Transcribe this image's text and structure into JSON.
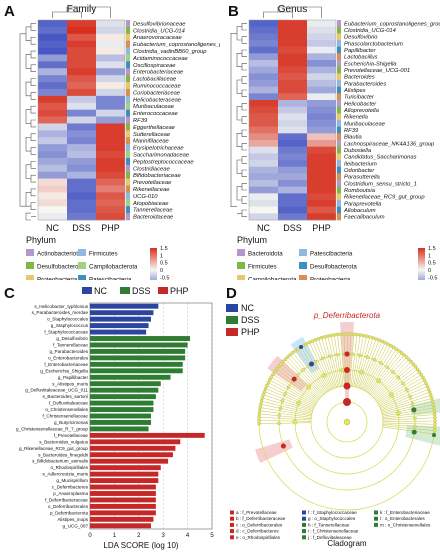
{
  "panels": {
    "A": {
      "letter": "A",
      "title": "Family",
      "columns": [
        "NC",
        "DSS",
        "PHP"
      ],
      "rows": [
        "Desulfovibrionaceae",
        "Clostridia_UCG-014",
        "Anaerovoracaceae",
        "Eubacterium_coprostanoligenes_group",
        "Clostridia_vadinBB60_group",
        "Acidaminococcaceae",
        "Oscillospiraceae",
        "Enterobacteriaceae",
        "Lactobacillaceae",
        "Ruminococcaceae",
        "Coriobacteriaceae",
        "Helicobacteraceae",
        "Muribaculaceae",
        "Enterococcaceae",
        "RF39",
        "Eggerthellaceae",
        "Sutterellaceae",
        "Marinifilaceae",
        "Erysipelotrichaceae",
        "Saccharimonadaceae",
        "Peptostreptococcaceae",
        "Clostridiaceae",
        "Bifidobacteriaceae",
        "Prevotellaceae",
        "Rikenellaceae",
        "UCG-010",
        "Atopobiaceae",
        "Tannerellaceae",
        "Bacteroidaceae"
      ],
      "values": [
        [
          -1.3,
          1.4,
          -0.2
        ],
        [
          -1.2,
          1.5,
          -0.3
        ],
        [
          -1.4,
          1.2,
          0.1
        ],
        [
          -1.3,
          1.4,
          -0.1
        ],
        [
          -1.4,
          1.3,
          0.1
        ],
        [
          -0.8,
          1.3,
          -0.5
        ],
        [
          -1.2,
          1.3,
          -0.2
        ],
        [
          -0.6,
          1.4,
          -0.8
        ],
        [
          -1.0,
          1.2,
          -0.3
        ],
        [
          -1.2,
          1.1,
          0.1
        ],
        [
          -1.0,
          1.3,
          -0.3
        ],
        [
          1.4,
          -0.4,
          -1.0
        ],
        [
          1.2,
          -0.2,
          -1.0
        ],
        [
          1.3,
          -1.0,
          -0.3
        ],
        [
          1.1,
          -0.3,
          -0.8
        ],
        [
          -0.3,
          -1.1,
          1.4
        ],
        [
          -0.6,
          -0.9,
          1.4
        ],
        [
          -0.4,
          -1.0,
          1.4
        ],
        [
          -0.8,
          -0.6,
          1.4
        ],
        [
          -0.9,
          -0.5,
          1.3
        ],
        [
          -0.7,
          -0.8,
          1.4
        ],
        [
          -0.5,
          -0.9,
          1.4
        ],
        [
          -0.8,
          -0.6,
          1.3
        ],
        [
          0.2,
          -1.2,
          1.1
        ],
        [
          0.3,
          -1.2,
          0.9
        ],
        [
          0.1,
          -1.3,
          1.2
        ],
        [
          0.2,
          -1.2,
          1.1
        ],
        [
          0.0,
          -1.2,
          1.2
        ],
        [
          -0.1,
          -1.1,
          1.3
        ]
      ],
      "phylum_label": "Phylum",
      "legend": [
        {
          "name": "Actinobacteriota",
          "color": "#b398c8"
        },
        {
          "name": "Desulfobacterota",
          "color": "#7fb848"
        },
        {
          "name": "Proteobacteria",
          "color": "#e8c86a"
        },
        {
          "name": "Bacteroidota",
          "color": "#d98e56"
        },
        {
          "name": "Firmicutes",
          "color": "#8fb9e3"
        },
        {
          "name": "Campilobacterota",
          "color": "#a5d07e"
        },
        {
          "name": "Patescibacteria",
          "color": "#3d8fc2"
        }
      ],
      "scale_ticks": [
        "1.5",
        "1",
        "0.5",
        "0",
        "-0.5",
        "-1",
        "-1.5"
      ]
    },
    "B": {
      "letter": "B",
      "title": "Genus",
      "columns": [
        "NC",
        "DSS",
        "PHP"
      ],
      "rows": [
        "Eubacterium_coprostanoligenes_group",
        "Clostridia_UCG-014",
        "Desulfovibrio",
        "Phascolarctobacterium",
        "Papillibacter",
        "Lactobacillus",
        "Escherichia-Shigella",
        "Prevotellaceae_UCG-001",
        "Bacteroides",
        "Parabacteroides",
        "Alistipes",
        "Turicibacter",
        "Helicobacter",
        "Alloprevotella",
        "Rikenella",
        "Muribaculaceae",
        "RF39",
        "Blautia",
        "Lachnospiraceae_NK4A136_group",
        "Dubosiella",
        "Candidatus_Saccharimonas",
        "Ileibacterium",
        "Odoribacter",
        "Parasutterella",
        "Clostridium_sensu_stricto_1",
        "Romboutsia",
        "Rikenellaceae_RC9_gut_group",
        "Paraprevotella",
        "Allobaculum",
        "Faecalibaculum"
      ],
      "values": [
        [
          -1.3,
          1.4,
          -0.1
        ],
        [
          -1.2,
          1.4,
          -0.2
        ],
        [
          -1.1,
          1.4,
          -0.3
        ],
        [
          -1.0,
          1.4,
          -0.4
        ],
        [
          -1.2,
          1.3,
          -0.1
        ],
        [
          -0.8,
          1.4,
          -0.6
        ],
        [
          -0.5,
          1.4,
          -0.9
        ],
        [
          -0.7,
          1.3,
          -0.6
        ],
        [
          -0.9,
          1.2,
          -0.3
        ],
        [
          -0.8,
          1.3,
          -0.5
        ],
        [
          -0.6,
          1.3,
          -0.7
        ],
        [
          -1.0,
          1.1,
          -0.1
        ],
        [
          1.4,
          -0.6,
          -0.8
        ],
        [
          1.3,
          -0.4,
          -0.9
        ],
        [
          1.2,
          -0.2,
          -1.0
        ],
        [
          1.2,
          -0.3,
          -0.9
        ],
        [
          1.0,
          -0.2,
          -0.8
        ],
        [
          0.8,
          -1.2,
          0.4
        ],
        [
          0.6,
          -1.3,
          0.7
        ],
        [
          -0.2,
          -1.1,
          1.3
        ],
        [
          -0.4,
          -1.0,
          1.4
        ],
        [
          -0.3,
          -1.1,
          1.4
        ],
        [
          -0.6,
          -0.8,
          1.4
        ],
        [
          -0.7,
          -0.7,
          1.4
        ],
        [
          -0.5,
          -0.9,
          1.4
        ],
        [
          -0.8,
          -0.6,
          1.4
        ],
        [
          -0.1,
          -1.2,
          1.3
        ],
        [
          -0.2,
          -1.2,
          1.4
        ],
        [
          0.0,
          -1.3,
          1.2
        ],
        [
          -0.3,
          -1.1,
          1.4
        ]
      ],
      "phylum_label": "Phylum",
      "legend": [
        {
          "name": "Bacteroidota",
          "color": "#b398c8"
        },
        {
          "name": "Firmicutes",
          "color": "#7fb848"
        },
        {
          "name": "Campilobacterota",
          "color": "#e8c86a"
        },
        {
          "name": "Patescibacteria",
          "color": "#8fb9e3"
        },
        {
          "name": "Desulfobacterota",
          "color": "#3d8fc2"
        },
        {
          "name": "Proteobacteria",
          "color": "#d98e56"
        }
      ],
      "scale_ticks": [
        "1.5",
        "1",
        "0.5",
        "0",
        "-0.5",
        "-1",
        "-1.5"
      ]
    },
    "C": {
      "letter": "C",
      "xlabel": "LDA SCORE (log 10)",
      "groups": [
        {
          "name": "NC",
          "color": "#2b46a0"
        },
        {
          "name": "DSS",
          "color": "#2e7d32"
        },
        {
          "name": "PHP",
          "color": "#c62828"
        }
      ]
    },
    "D": {
      "letter": "D",
      "xlabel": "Cladogram",
      "highlight_label": "p_Deferribacterota",
      "legend_groups": [
        {
          "name": "NC",
          "color": "#2b46a0"
        },
        {
          "name": "DSS",
          "color": "#2e7d32"
        },
        {
          "name": "PHP",
          "color": "#c62828"
        }
      ],
      "key": [
        {
          "code": "a",
          "text": "a : f_Prevotellaceae",
          "color": "#c62828"
        },
        {
          "code": "b",
          "text": "b : f_Deferribacteraceae",
          "color": "#c62828"
        },
        {
          "code": "c",
          "text": "c : o_Deferribacterales",
          "color": "#c62828"
        },
        {
          "code": "d",
          "text": "d : c_Deferribacteres",
          "color": "#c62828"
        },
        {
          "code": "e",
          "text": "e : o_Rhodospirillales",
          "color": "#c62828"
        },
        {
          "code": "f",
          "text": "f : f_Staphylococcaceae",
          "color": "#2b46a0"
        },
        {
          "code": "g",
          "text": "g : o_Staphylococcales",
          "color": "#2b46a0"
        },
        {
          "code": "h",
          "text": "h : f_Tannerellaceae",
          "color": "#2e7d32"
        },
        {
          "code": "i",
          "text": "i : f_Christensenellaceae",
          "color": "#2e7d32"
        },
        {
          "code": "j",
          "text": "j : f_Defluviitaleaceae",
          "color": "#2e7d32"
        },
        {
          "code": "k",
          "text": "k : f_Enterobacteriaceae",
          "color": "#2e7d32"
        },
        {
          "code": "l",
          "text": "l : o_Enterobacterales",
          "color": "#2e7d32"
        },
        {
          "code": "m",
          "text": "m : o_Christensenellales",
          "color": "#2e7d32"
        }
      ]
    }
  },
  "chart_data": [
    {
      "type": "bar",
      "orientation": "horizontal",
      "xlabel": "LDA SCORE (log 10)",
      "xlim": [
        0,
        5
      ],
      "xticks": [
        0,
        1,
        2,
        3,
        4,
        5
      ],
      "grid": "vertical dashed",
      "legend": "top",
      "categories": [
        "s_Helicobacter_typhlonius",
        "s_Parabacteroides_merdae",
        "o_Staphylococcales",
        "g_Staphylococcus",
        "f_Staphylococcaceae",
        "g_Desulfovibrio",
        "f_Tannerellaceae",
        "g_Parabacteroides",
        "o_Enterobacterales",
        "f_Enterobacteriaceae",
        "g_Escherichia_Shigella",
        "g_Papillibacter",
        "s_Alistipes_muris",
        "g_Defluviitaleaceae_UCG_011",
        "s_Bacteroides_sartorii",
        "f_Defluviitaleaceae",
        "o_Christensenellales",
        "f_Christensenellaceae",
        "g_Butyricimonas",
        "g_Christensenellaceae_R_7_group",
        "f_Prevotellaceae",
        "s_Bacteroides_vulgatus",
        "g_Rikenellaceae_RC9_gut_group",
        "s_Bacteroides_finegoldii",
        "s_Bifidobacterium_animalis",
        "o_Rhodospirillales",
        "s_Adlercreutzia_muris",
        "g_Mucispirillum",
        "c_Deferribacteres",
        "p_Anaeroplasma",
        "f_Deferribacteraceae",
        "o_Deferribacterales",
        "p_Deferribacterota",
        "Alistipes_inops",
        "g_UCG_007"
      ],
      "groups": [
        "NC",
        "NC",
        "NC",
        "NC",
        "NC",
        "DSS",
        "DSS",
        "DSS",
        "DSS",
        "DSS",
        "DSS",
        "DSS",
        "DSS",
        "DSS",
        "DSS",
        "DSS",
        "DSS",
        "DSS",
        "DSS",
        "DSS",
        "PHP",
        "PHP",
        "PHP",
        "PHP",
        "PHP",
        "PHP",
        "PHP",
        "PHP",
        "PHP",
        "PHP",
        "PHP",
        "PHP",
        "PHP",
        "PHP",
        "PHP"
      ],
      "values": [
        2.8,
        2.6,
        2.5,
        2.4,
        2.3,
        4.1,
        4.0,
        3.9,
        3.9,
        3.8,
        3.8,
        3.3,
        2.9,
        2.8,
        2.7,
        2.6,
        2.6,
        2.5,
        2.5,
        2.4,
        4.7,
        3.7,
        3.5,
        3.4,
        3.2,
        2.9,
        2.8,
        2.8,
        2.7,
        2.7,
        2.7,
        2.7,
        2.7,
        2.6,
        2.5
      ]
    }
  ]
}
